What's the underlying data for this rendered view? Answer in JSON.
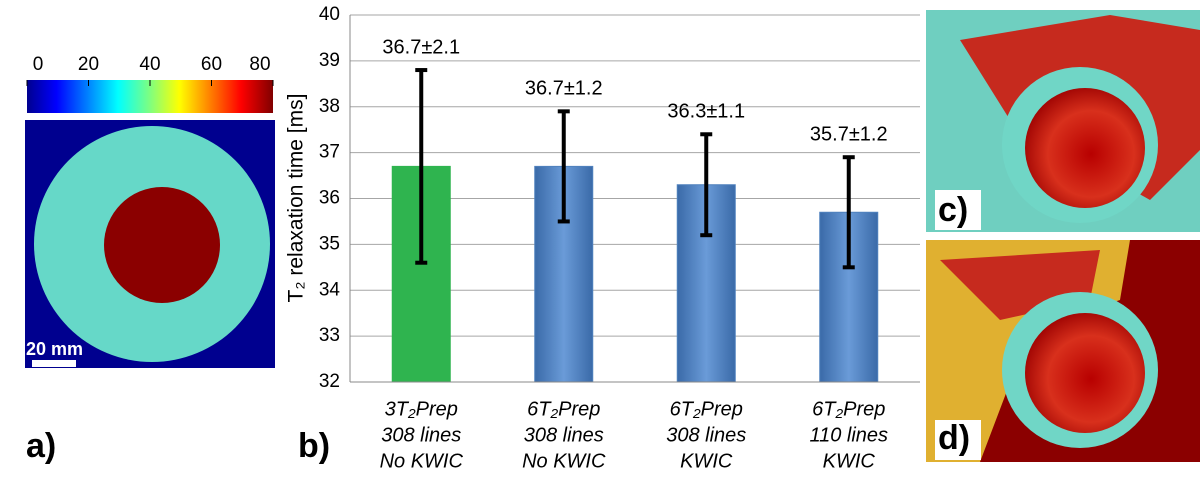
{
  "chart_data": {
    "type": "bar",
    "y_label": "T₂ relaxation time [ms]",
    "categories": [
      [
        "3T₂Prep",
        "308 lines",
        "No KWIC"
      ],
      [
        "6T₂Prep",
        "308 lines",
        "No KWIC"
      ],
      [
        "6T₂Prep",
        "308 lines",
        "KWIC"
      ],
      [
        "6T₂Prep",
        "110 lines",
        "KWIC"
      ]
    ],
    "values": [
      36.7,
      36.7,
      36.3,
      35.7
    ],
    "errors": [
      2.1,
      1.2,
      1.1,
      1.2
    ],
    "value_labels": [
      "36.7±2.1",
      "36.7±1.2",
      "36.3±1.1",
      "35.7±1.2"
    ],
    "colors": [
      "#2fb44f",
      "#4f81bd",
      "#4f81bd",
      "#4f81bd"
    ],
    "ylim": [
      32,
      40
    ],
    "yticks": [
      32,
      33,
      34,
      35,
      36,
      37,
      38,
      39,
      40
    ],
    "grid": true,
    "panel_label": "b)"
  },
  "panel_a": {
    "label": "a)",
    "colorbar_lim": [
      0,
      80
    ],
    "colorbar_ticks": [
      0,
      20,
      40,
      60,
      80
    ],
    "scale_bar": "20 mm"
  },
  "panel_c": {
    "label": "c)"
  },
  "panel_d": {
    "label": "d)"
  }
}
